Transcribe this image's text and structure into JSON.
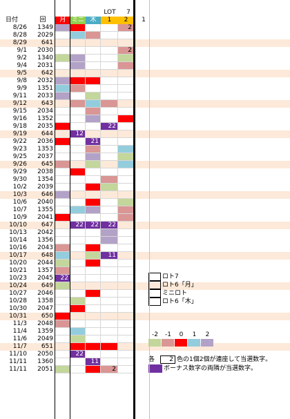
{
  "headers": {
    "date": "日付",
    "round": "回",
    "lot_label": "LOT",
    "lot_num": "7",
    "one": "1",
    "cols": [
      {
        "label": "月",
        "sub": "",
        "bg": "#ff0000",
        "fg": "#ffffff"
      },
      {
        "label": "ミニ",
        "sub": "",
        "bg": "#92d050",
        "fg": "#ffffff"
      },
      {
        "label": "木",
        "sub": "",
        "bg": "#4bacc6",
        "fg": "#ffffff"
      },
      {
        "label": "",
        "sub": "1",
        "bg": "#ffc000",
        "fg": "#000000"
      },
      {
        "label": "",
        "sub": "2",
        "bg": "#ffc000",
        "fg": "#000000"
      }
    ]
  },
  "colors": {
    "R": "#ff0000",
    "r": "#d99694",
    "p": "#b3a2c7",
    "P": "#7030a0",
    "g": "#c3d69b",
    "b": "#93cddd",
    "o": "#fde9d9",
    "w": "#ffffff"
  },
  "rows": [
    {
      "date": "8/26",
      "num": "1349",
      "cells": [
        "p",
        "R",
        "w",
        "w",
        "r"
      ],
      "text": [
        "",
        "",
        "",
        "",
        "2"
      ],
      "band": false
    },
    {
      "date": "8/28",
      "num": "2029",
      "cells": [
        "w",
        "b",
        "r",
        "w",
        "w"
      ],
      "text": [
        "",
        "",
        "",
        "",
        ""
      ],
      "band": false
    },
    {
      "date": "8/29",
      "num": "641",
      "cells": [
        "w",
        "w",
        "w",
        "w",
        "w"
      ],
      "text": [
        "",
        "",
        "",
        "",
        ""
      ],
      "band": true
    },
    {
      "date": "9/1",
      "num": "2030",
      "cells": [
        "w",
        "w",
        "w",
        "w",
        "r"
      ],
      "text": [
        "",
        "",
        "",
        "",
        "2"
      ],
      "band": false
    },
    {
      "date": "9/2",
      "num": "1340",
      "cells": [
        "g",
        "p",
        "w",
        "w",
        "g"
      ],
      "text": [
        "",
        "",
        "",
        "",
        ""
      ],
      "band": false
    },
    {
      "date": "9/4",
      "num": "2031",
      "cells": [
        "w",
        "p",
        "w",
        "w",
        "r"
      ],
      "text": [
        "",
        "",
        "",
        "",
        ""
      ],
      "band": false
    },
    {
      "date": "9/5",
      "num": "642",
      "cells": [
        "w",
        "w",
        "w",
        "w",
        "w"
      ],
      "text": [
        "",
        "",
        "",
        "",
        ""
      ],
      "band": true
    },
    {
      "date": "9/8",
      "num": "2032",
      "cells": [
        "p",
        "R",
        "R",
        "w",
        "w"
      ],
      "text": [
        "",
        "",
        "",
        "",
        ""
      ],
      "band": false
    },
    {
      "date": "9/9",
      "num": "1351",
      "cells": [
        "b",
        "r",
        "w",
        "w",
        "w"
      ],
      "text": [
        "",
        "",
        "",
        "",
        ""
      ],
      "band": false
    },
    {
      "date": "9/11",
      "num": "2033",
      "cells": [
        "p",
        "w",
        "g",
        "w",
        "w"
      ],
      "text": [
        "",
        "",
        "",
        "",
        ""
      ],
      "band": false
    },
    {
      "date": "9/12",
      "num": "643",
      "cells": [
        "w",
        "r",
        "b",
        "r",
        "w"
      ],
      "text": [
        "",
        "",
        "",
        "",
        ""
      ],
      "band": true
    },
    {
      "date": "9/15",
      "num": "2034",
      "cells": [
        "w",
        "w",
        "r",
        "w",
        "w"
      ],
      "text": [
        "",
        "",
        "",
        "",
        ""
      ],
      "band": false
    },
    {
      "date": "9/16",
      "num": "1352",
      "cells": [
        "w",
        "w",
        "p",
        "w",
        "R"
      ],
      "text": [
        "",
        "",
        "",
        "",
        ""
      ],
      "band": false
    },
    {
      "date": "9/18",
      "num": "2035",
      "cells": [
        "R",
        "w",
        "w",
        "P",
        "w"
      ],
      "text": [
        "",
        "",
        "",
        "22",
        ""
      ],
      "band": false
    },
    {
      "date": "9/19",
      "num": "644",
      "cells": [
        "w",
        "P",
        "w",
        "w",
        "w"
      ],
      "text": [
        "",
        "12",
        "",
        "",
        ""
      ],
      "band": true
    },
    {
      "date": "9/22",
      "num": "2036",
      "cells": [
        "R",
        "w",
        "P",
        "w",
        "w"
      ],
      "text": [
        "",
        "",
        "21",
        "",
        ""
      ],
      "band": false
    },
    {
      "date": "9/23",
      "num": "1353",
      "cells": [
        "w",
        "w",
        "r",
        "w",
        "b"
      ],
      "text": [
        "",
        "",
        "",
        "",
        ""
      ],
      "band": false
    },
    {
      "date": "9/25",
      "num": "2037",
      "cells": [
        "w",
        "w",
        "p",
        "w",
        "g"
      ],
      "text": [
        "",
        "",
        "",
        "",
        ""
      ],
      "band": false
    },
    {
      "date": "9/26",
      "num": "645",
      "cells": [
        "r",
        "w",
        "g",
        "w",
        "b"
      ],
      "text": [
        "",
        "",
        "",
        "",
        ""
      ],
      "band": true
    },
    {
      "date": "9/29",
      "num": "2038",
      "cells": [
        "w",
        "R",
        "w",
        "w",
        "w"
      ],
      "text": [
        "",
        "",
        "",
        "",
        ""
      ],
      "band": false
    },
    {
      "date": "9/30",
      "num": "1354",
      "cells": [
        "w",
        "w",
        "w",
        "r",
        "w"
      ],
      "text": [
        "",
        "",
        "",
        "",
        ""
      ],
      "band": false
    },
    {
      "date": "10/2",
      "num": "2039",
      "cells": [
        "w",
        "w",
        "R",
        "g",
        "w"
      ],
      "text": [
        "",
        "",
        "",
        "",
        ""
      ],
      "band": false
    },
    {
      "date": "10/3",
      "num": "646",
      "cells": [
        "p",
        "w",
        "w",
        "w",
        "w"
      ],
      "text": [
        "",
        "",
        "",
        "",
        ""
      ],
      "band": true
    },
    {
      "date": "10/6",
      "num": "2040",
      "cells": [
        "w",
        "w",
        "R",
        "w",
        "g"
      ],
      "text": [
        "",
        "",
        "",
        "",
        ""
      ],
      "band": false
    },
    {
      "date": "10/7",
      "num": "1355",
      "cells": [
        "w",
        "b",
        "p",
        "w",
        "r"
      ],
      "text": [
        "",
        "",
        "",
        "",
        ""
      ],
      "band": false
    },
    {
      "date": "10/9",
      "num": "2041",
      "cells": [
        "R",
        "w",
        "w",
        "w",
        "r"
      ],
      "text": [
        "",
        "",
        "",
        "",
        ""
      ],
      "band": false
    },
    {
      "date": "10/10",
      "num": "647",
      "cells": [
        "w",
        "P",
        "P",
        "P",
        "w"
      ],
      "text": [
        "",
        "22",
        "22",
        "22",
        ""
      ],
      "band": true
    },
    {
      "date": "10/13",
      "num": "2042",
      "cells": [
        "w",
        "w",
        "w",
        "p",
        "w"
      ],
      "text": [
        "",
        "",
        "",
        "",
        ""
      ],
      "band": false
    },
    {
      "date": "10/14",
      "num": "1356",
      "cells": [
        "w",
        "w",
        "w",
        "p",
        "w"
      ],
      "text": [
        "",
        "",
        "",
        "",
        ""
      ],
      "band": false
    },
    {
      "date": "10/16",
      "num": "2043",
      "cells": [
        "r",
        "w",
        "R",
        "w",
        "w"
      ],
      "text": [
        "",
        "",
        "",
        "",
        ""
      ],
      "band": false
    },
    {
      "date": "10/17",
      "num": "648",
      "cells": [
        "b",
        "w",
        "g",
        "P",
        "w"
      ],
      "text": [
        "",
        "",
        "",
        "11",
        ""
      ],
      "band": true
    },
    {
      "date": "10/20",
      "num": "2044",
      "cells": [
        "g",
        "w",
        "R",
        "w",
        "w"
      ],
      "text": [
        "",
        "",
        "",
        "",
        ""
      ],
      "band": false
    },
    {
      "date": "10/21",
      "num": "1357",
      "cells": [
        "r",
        "w",
        "w",
        "w",
        "w"
      ],
      "text": [
        "",
        "",
        "",
        "",
        ""
      ],
      "band": false
    },
    {
      "date": "10/23",
      "num": "2045",
      "cells": [
        "P",
        "w",
        "w",
        "w",
        "w"
      ],
      "text": [
        "22",
        "",
        "",
        "",
        ""
      ],
      "band": false
    },
    {
      "date": "10/24",
      "num": "649",
      "cells": [
        "g",
        "w",
        "w",
        "w",
        "w"
      ],
      "text": [
        "",
        "",
        "",
        "",
        ""
      ],
      "band": true
    },
    {
      "date": "10/27",
      "num": "2046",
      "cells": [
        "w",
        "w",
        "R",
        "w",
        "w"
      ],
      "text": [
        "",
        "",
        "",
        "",
        ""
      ],
      "band": false
    },
    {
      "date": "10/28",
      "num": "1358",
      "cells": [
        "w",
        "g",
        "w",
        "w",
        "w"
      ],
      "text": [
        "",
        "",
        "",
        "",
        ""
      ],
      "band": false
    },
    {
      "date": "10/30",
      "num": "2047",
      "cells": [
        "w",
        "R",
        "w",
        "w",
        "w"
      ],
      "text": [
        "",
        "",
        "",
        "",
        ""
      ],
      "band": false
    },
    {
      "date": "10/31",
      "num": "650",
      "cells": [
        "R",
        "w",
        "w",
        "w",
        "w"
      ],
      "text": [
        "",
        "",
        "",
        "",
        ""
      ],
      "band": true
    },
    {
      "date": "11/3",
      "num": "2048",
      "cells": [
        "r",
        "w",
        "w",
        "w",
        "w"
      ],
      "text": [
        "",
        "",
        "",
        "",
        ""
      ],
      "band": false
    },
    {
      "date": "11/4",
      "num": "1359",
      "cells": [
        "w",
        "b",
        "w",
        "w",
        "w"
      ],
      "text": [
        "",
        "",
        "",
        "",
        ""
      ],
      "band": false
    },
    {
      "date": "11/6",
      "num": "2049",
      "cells": [
        "w",
        "g",
        "w",
        "w",
        "w"
      ],
      "text": [
        "",
        "",
        "",
        "",
        ""
      ],
      "band": false
    },
    {
      "date": "11/7",
      "num": "651",
      "cells": [
        "w",
        "R",
        "R",
        "R",
        "w"
      ],
      "text": [
        "",
        "",
        "",
        "",
        ""
      ],
      "band": true
    },
    {
      "date": "11/10",
      "num": "2050",
      "cells": [
        "w",
        "P",
        "w",
        "w",
        "w"
      ],
      "text": [
        "",
        "22",
        "",
        "",
        ""
      ],
      "band": false
    },
    {
      "date": "11/11",
      "num": "1360",
      "cells": [
        "w",
        "w",
        "P",
        "w",
        "w"
      ],
      "text": [
        "",
        "",
        "11",
        "",
        ""
      ],
      "band": false
    },
    {
      "date": "11/11",
      "num": "2051",
      "cells": [
        "g",
        "w",
        "R",
        "r",
        "w"
      ],
      "text": [
        "",
        "",
        "",
        "2",
        ""
      ],
      "band": false
    }
  ],
  "legend": {
    "items": [
      {
        "label": "ロト7"
      },
      {
        "label": "ロト6「月」"
      },
      {
        "label": "ミニロト"
      },
      {
        "label": "ロト6「木」"
      }
    ],
    "scale": [
      {
        "value": "-2",
        "color": "#c3d69b"
      },
      {
        "value": "-1",
        "color": "#d99694"
      },
      {
        "value": "0",
        "color": "#ff0000"
      },
      {
        "value": "1",
        "color": "#93cddd"
      },
      {
        "value": "2",
        "color": "#b3a2c7"
      }
    ],
    "note_prefix": "各",
    "note_box": "2",
    "note1": "各色の1個2個が連座して当選数字。",
    "note2": "ボーナス数字の両隣が当選数字。",
    "bonus_color": "#7030a0"
  }
}
